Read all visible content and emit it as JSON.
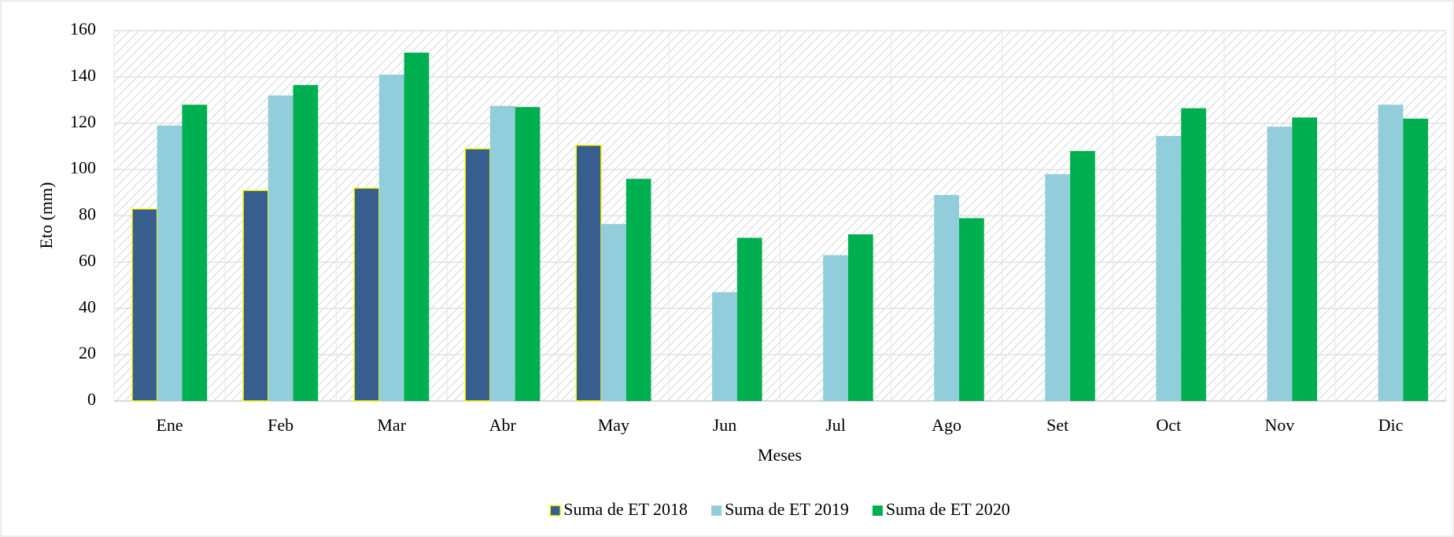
{
  "chart_data": {
    "type": "bar",
    "x_label": "Meses",
    "y_label": "Eto (mm)",
    "categories": [
      "Ene",
      "Feb",
      "Mar",
      "Abr",
      "May",
      "Jun",
      "Jul",
      "Ago",
      "Set",
      "Oct",
      "Nov",
      "Dic"
    ],
    "series": [
      {
        "name": "Suma de ET 2018",
        "color": "#375e8f",
        "values": [
          83,
          91,
          92,
          109,
          110.5,
          null,
          null,
          null,
          null,
          null,
          null,
          null
        ]
      },
      {
        "name": "Suma de ET 2019",
        "color": "#92cddc",
        "values": [
          119,
          132,
          141,
          127.5,
          76.5,
          47,
          63,
          89,
          98,
          114.5,
          118.5,
          128
        ]
      },
      {
        "name": "Suma de ET 2020",
        "color": "#00b050",
        "values": [
          128,
          136.5,
          150.5,
          127,
          96,
          70.5,
          72,
          79,
          108,
          126.5,
          122.5,
          122
        ]
      }
    ],
    "ylim": [
      0,
      160
    ],
    "yticks": [
      0,
      20,
      40,
      60,
      80,
      100,
      120,
      140,
      160
    ],
    "grid": true,
    "legend": "bottom"
  }
}
